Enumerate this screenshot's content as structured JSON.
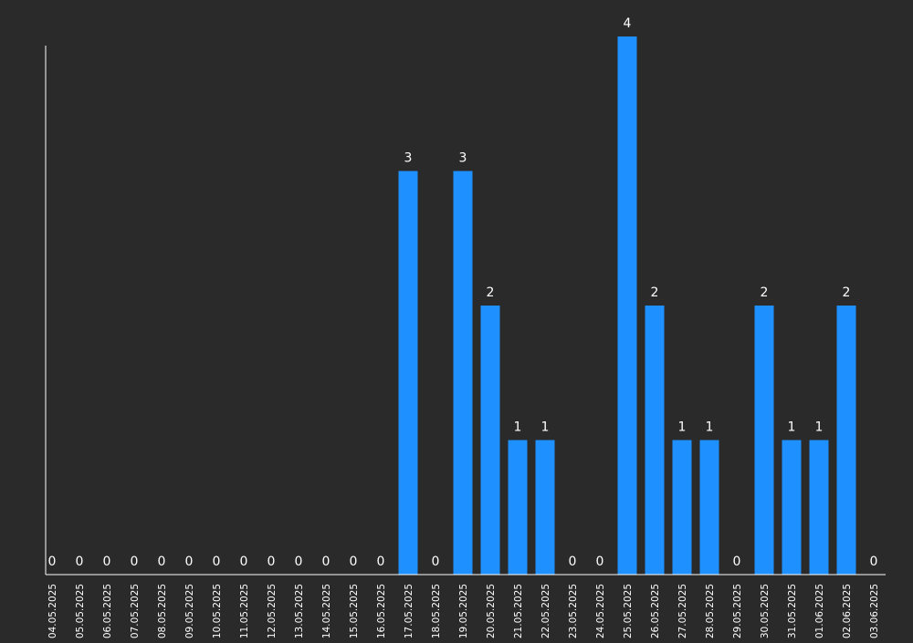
{
  "colors": {
    "background": "#2a2a2a",
    "bar": "#1e90ff",
    "axis": "#ffffff",
    "text": "#ffffff"
  },
  "chart_data": {
    "type": "bar",
    "title": "",
    "xlabel": "",
    "ylabel": "",
    "ylim": [
      0,
      4
    ],
    "grid": false,
    "legend": "none",
    "data_labels": true,
    "categories": [
      "04.05.2025",
      "05.05.2025",
      "06.05.2025",
      "07.05.2025",
      "08.05.2025",
      "09.05.2025",
      "10.05.2025",
      "11.05.2025",
      "12.05.2025",
      "13.05.2025",
      "14.05.2025",
      "15.05.2025",
      "16.05.2025",
      "17.05.2025",
      "18.05.2025",
      "19.05.2025",
      "20.05.2025",
      "21.05.2025",
      "22.05.2025",
      "23.05.2025",
      "24.05.2025",
      "25.05.2025",
      "26.05.2025",
      "27.05.2025",
      "28.05.2025",
      "29.05.2025",
      "30.05.2025",
      "31.05.2025",
      "01.06.2025",
      "02.06.2025",
      "03.06.2025"
    ],
    "values": [
      0,
      0,
      0,
      0,
      0,
      0,
      0,
      0,
      0,
      0,
      0,
      0,
      0,
      3,
      0,
      3,
      2,
      1,
      1,
      0,
      0,
      4,
      2,
      1,
      1,
      0,
      2,
      1,
      1,
      2,
      0
    ]
  }
}
